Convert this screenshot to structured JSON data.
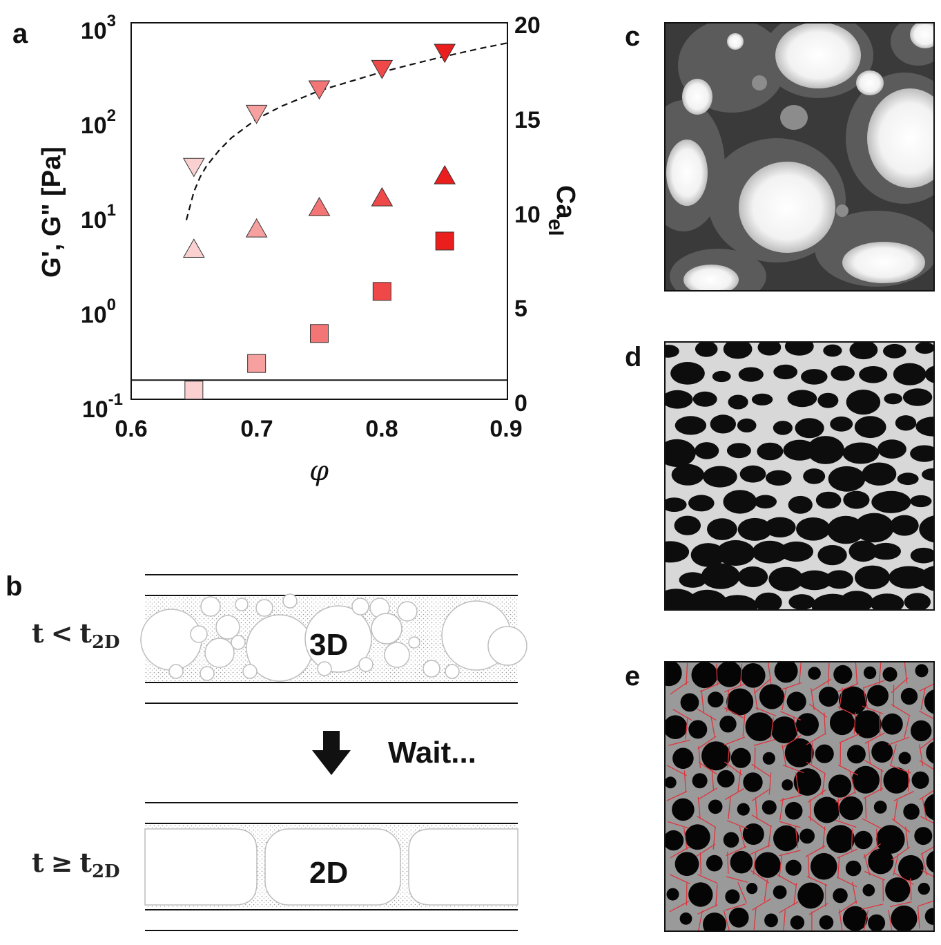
{
  "panels": {
    "a": "a",
    "b": "b",
    "c": "c",
    "d": "d",
    "e": "e"
  },
  "chart_data": {
    "type": "scatter",
    "ylabel": "G', G\" [Pa]",
    "y2label_main": "Ca",
    "y2label_sub": "el",
    "xlabel": "φ",
    "x_ticks": [
      "0.6",
      "0.7",
      "0.8",
      "0.9"
    ],
    "y_ticks": [
      {
        "base": "10",
        "exp": "3"
      },
      {
        "base": "10",
        "exp": "2"
      },
      {
        "base": "10",
        "exp": "1"
      },
      {
        "base": "10",
        "exp": "0"
      },
      {
        "base": "10",
        "exp": "-1"
      }
    ],
    "y2_ticks": [
      "20",
      "15",
      "10",
      "5",
      "0"
    ],
    "xlim": [
      0.6,
      0.9
    ],
    "ylim_log10": [
      -1,
      3
    ],
    "y2lim": [
      0,
      20
    ],
    "y_scale": "log",
    "series": [
      {
        "marker": "triangle-down",
        "x": [
          0.65,
          0.7,
          0.75,
          0.8,
          0.85
        ],
        "y": [
          30,
          110,
          200,
          330,
          490
        ],
        "colors": [
          "#fbd0d0",
          "#f7a0a0",
          "#f37575",
          "#ef4848",
          "#eb1e1e"
        ]
      },
      {
        "marker": "triangle-up",
        "x": [
          0.65,
          0.7,
          0.75,
          0.8,
          0.85
        ],
        "y": [
          3.9,
          6.4,
          10.8,
          13.7,
          23.5
        ],
        "colors": [
          "#fbd0d0",
          "#f7a0a0",
          "#f37575",
          "#ef4848",
          "#eb1e1e"
        ]
      },
      {
        "marker": "square",
        "x": [
          0.65,
          0.7,
          0.75,
          0.8,
          0.85
        ],
        "y": [
          0.125,
          0.24,
          0.5,
          1.4,
          4.8
        ],
        "colors": [
          "#fbd0d0",
          "#f7a0a0",
          "#f37575",
          "#ef4848",
          "#eb1e1e"
        ]
      }
    ],
    "dashed_curve": {
      "x": [
        0.644,
        0.65,
        0.655,
        0.66,
        0.67,
        0.68,
        0.7,
        0.72,
        0.75,
        0.78,
        0.8,
        0.83,
        0.85,
        0.88,
        0.9
      ],
      "y": [
        8,
        16,
        23,
        30,
        44,
        60,
        95,
        130,
        190,
        250,
        300,
        380,
        440,
        540,
        610
      ]
    },
    "hline_y": 0.16
  },
  "diagram": {
    "state_top": {
      "t": "t",
      "rel": "<",
      "t2": "t",
      "sub": "2D"
    },
    "state_bottom": {
      "t": "t",
      "rel": "≥",
      "t2": "t",
      "sub": "2D"
    },
    "label_3d": "3D",
    "label_2d": "2D",
    "wait_label": "Wait..."
  }
}
